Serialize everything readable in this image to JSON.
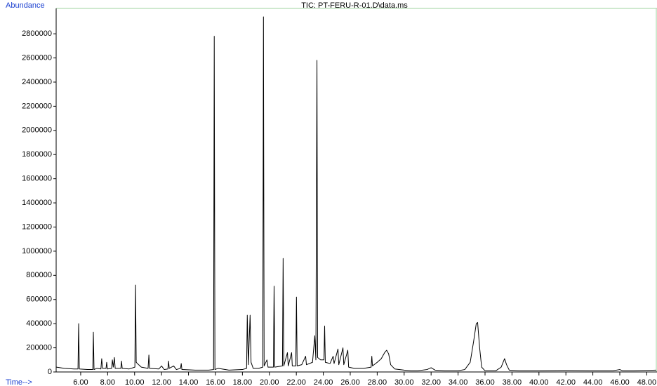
{
  "chart_data": {
    "type": "line",
    "title": "TIC: PT-FERU-R-01.D\\data.ms",
    "y_label": "Abundance",
    "x_label": "Time-->",
    "color": "#000000",
    "xlim": [
      4.18,
      48.76
    ],
    "ylim": [
      0,
      3010000
    ],
    "xticks": [
      {
        "value": 6,
        "label": "6.00"
      },
      {
        "value": 8,
        "label": "8.00"
      },
      {
        "value": 10,
        "label": "10.00"
      },
      {
        "value": 12,
        "label": "12.00"
      },
      {
        "value": 14,
        "label": "14.00"
      },
      {
        "value": 16,
        "label": "16.00"
      },
      {
        "value": 18,
        "label": "18.00"
      },
      {
        "value": 20,
        "label": "20.00"
      },
      {
        "value": 22,
        "label": "22.00"
      },
      {
        "value": 24,
        "label": "24.00"
      },
      {
        "value": 26,
        "label": "26.00"
      },
      {
        "value": 28,
        "label": "28.00"
      },
      {
        "value": 30,
        "label": "30.00"
      },
      {
        "value": 32,
        "label": "32.00"
      },
      {
        "value": 34,
        "label": "34.00"
      },
      {
        "value": 36,
        "label": "36.00"
      },
      {
        "value": 38,
        "label": "38.00"
      },
      {
        "value": 40,
        "label": "40.00"
      },
      {
        "value": 42,
        "label": "42.00"
      },
      {
        "value": 44,
        "label": "44.00"
      },
      {
        "value": 46,
        "label": "46.00"
      },
      {
        "value": 48,
        "label": "48.00"
      }
    ],
    "yticks": [
      0,
      200000,
      400000,
      600000,
      800000,
      1000000,
      1200000,
      1400000,
      1600000,
      1800000,
      2000000,
      2200000,
      2400000,
      2600000,
      2800000
    ],
    "x": [
      4.2,
      4.8,
      5.5,
      5.8,
      5.85,
      5.9,
      6.5,
      6.9,
      6.94,
      6.99,
      7.2,
      7.5,
      7.56,
      7.62,
      7.88,
      7.93,
      7.98,
      8.3,
      8.35,
      8.42,
      8.5,
      8.56,
      8.98,
      9.03,
      9.08,
      9.6,
      10.02,
      10.07,
      10.12,
      10.3,
      10.5,
      11.0,
      11.06,
      11.11,
      11.8,
      12.0,
      12.2,
      12.47,
      12.52,
      12.57,
      12.9,
      13.1,
      13.41,
      13.46,
      13.51,
      14.5,
      15.5,
      15.86,
      15.91,
      15.96,
      16.2,
      17.0,
      18.0,
      18.31,
      18.36,
      18.44,
      18.57,
      18.64,
      18.8,
      19.2,
      19.51,
      19.56,
      19.61,
      19.82,
      19.9,
      20.3,
      20.35,
      20.4,
      20.97,
      21.02,
      21.07,
      21.34,
      21.4,
      21.65,
      21.7,
      21.96,
      22.01,
      22.06,
      22.4,
      22.69,
      22.75,
      23.2,
      23.37,
      23.45,
      23.53,
      23.58,
      23.8,
      24.05,
      24.1,
      24.15,
      24.5,
      24.73,
      24.8,
      25.09,
      25.15,
      25.46,
      25.52,
      25.82,
      25.88,
      26.3,
      27.0,
      27.55,
      27.6,
      27.65,
      28.0,
      28.3,
      28.55,
      28.7,
      28.85,
      29.0,
      29.3,
      30.0,
      30.5,
      31.0,
      31.7,
      32.0,
      32.3,
      33.0,
      34.0,
      34.5,
      34.9,
      35.15,
      35.35,
      35.45,
      35.6,
      35.75,
      36.0,
      36.8,
      37.2,
      37.45,
      37.6,
      37.8,
      38.5,
      40.0,
      42.0,
      44.0,
      45.5,
      46.0,
      46.2,
      47.0,
      48.7
    ],
    "values": [
      40000,
      30000,
      25000,
      25000,
      400000,
      25000,
      20000,
      20000,
      330000,
      20000,
      30000,
      25000,
      110000,
      30000,
      30000,
      80000,
      25000,
      30000,
      100000,
      40000,
      120000,
      30000,
      30000,
      90000,
      30000,
      25000,
      40000,
      720000,
      80000,
      60000,
      40000,
      30000,
      140000,
      30000,
      25000,
      50000,
      20000,
      25000,
      90000,
      30000,
      50000,
      20000,
      30000,
      70000,
      20000,
      15000,
      15000,
      20000,
      2780000,
      20000,
      30000,
      15000,
      20000,
      30000,
      470000,
      60000,
      470000,
      80000,
      30000,
      30000,
      40000,
      2940000,
      50000,
      100000,
      40000,
      40000,
      710000,
      40000,
      50000,
      940000,
      50000,
      160000,
      50000,
      160000,
      50000,
      50000,
      620000,
      50000,
      60000,
      130000,
      60000,
      80000,
      300000,
      100000,
      2580000,
      120000,
      100000,
      100000,
      380000,
      80000,
      70000,
      130000,
      70000,
      190000,
      60000,
      200000,
      60000,
      180000,
      40000,
      30000,
      30000,
      40000,
      130000,
      50000,
      80000,
      110000,
      160000,
      180000,
      150000,
      60000,
      25000,
      15000,
      10000,
      10000,
      20000,
      35000,
      15000,
      10000,
      10000,
      20000,
      80000,
      250000,
      400000,
      410000,
      200000,
      40000,
      10000,
      10000,
      40000,
      110000,
      60000,
      15000,
      10000,
      10000,
      12000,
      10000,
      10000,
      20000,
      10000,
      10000,
      15000
    ]
  }
}
